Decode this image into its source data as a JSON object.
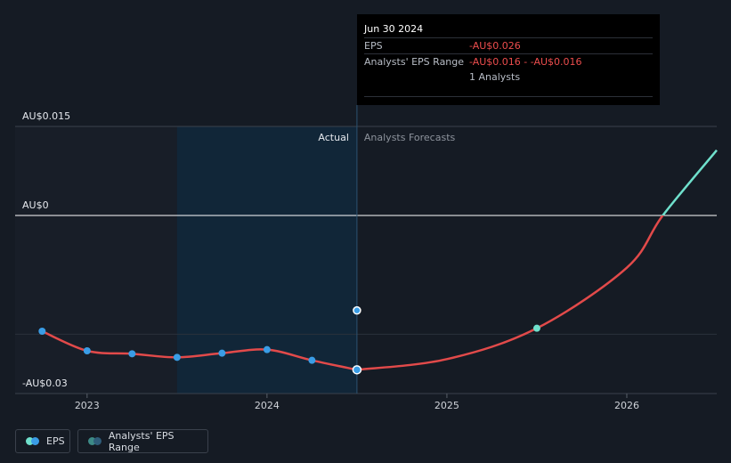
{
  "tooltip": {
    "date": "Jun 30 2024",
    "eps_label": "EPS",
    "eps_value": "-AU$0.026",
    "range_label": "Analysts' EPS Range",
    "range_value": "-AU$0.016 - -AU$0.016",
    "analysts": "1 Analysts"
  },
  "legend": {
    "eps_label": "EPS",
    "range_label": "Analysts' EPS Range"
  },
  "colors": {
    "actual_line": "#e24a4a",
    "forecast_positive": "#6fe0cc",
    "eps_dot": "#3a9de6",
    "forecast_dot": "#6fe0cc",
    "range_dot": "#3d8a87"
  },
  "chart_data": {
    "type": "line",
    "y_tick_labels": [
      "AU$0.015",
      "AU$0",
      "-AU$0.03"
    ],
    "y_ticks": [
      0.015,
      0,
      -0.03
    ],
    "ylim": [
      -0.03,
      0.015
    ],
    "x_tick_labels": [
      "2023",
      "2024",
      "2025",
      "2026"
    ],
    "x_ticks": [
      2023.0,
      2024.0,
      2025.0,
      2026.0
    ],
    "xlim": [
      2022.6,
      2026.5
    ],
    "divider_labels": {
      "actual": "Actual",
      "forecast": "Analysts Forecasts"
    },
    "highlight_range": [
      2023.5,
      2024.5
    ],
    "divider_x": 2024.5,
    "series": [
      {
        "name": "EPS",
        "points": [
          {
            "x": 2022.75,
            "y": -0.0195
          },
          {
            "x": 2023.0,
            "y": -0.0228
          },
          {
            "x": 2023.25,
            "y": -0.0233
          },
          {
            "x": 2023.5,
            "y": -0.0239
          },
          {
            "x": 2023.75,
            "y": -0.0232
          },
          {
            "x": 2024.0,
            "y": -0.0226
          },
          {
            "x": 2024.25,
            "y": -0.0244
          },
          {
            "x": 2024.5,
            "y": -0.026
          }
        ]
      },
      {
        "name": "Forecast",
        "points": [
          {
            "x": 2024.5,
            "y": -0.026
          },
          {
            "x": 2025.0,
            "y": -0.0242
          },
          {
            "x": 2025.5,
            "y": -0.019
          },
          {
            "x": 2026.0,
            "y": -0.0088
          },
          {
            "x": 2026.2,
            "y": 0.0
          },
          {
            "x": 2026.5,
            "y": 0.011
          }
        ]
      }
    ],
    "range_point": {
      "x": 2024.5,
      "y": -0.016
    },
    "forecast_dot_point": {
      "x": 2025.5,
      "y": -0.019
    }
  }
}
